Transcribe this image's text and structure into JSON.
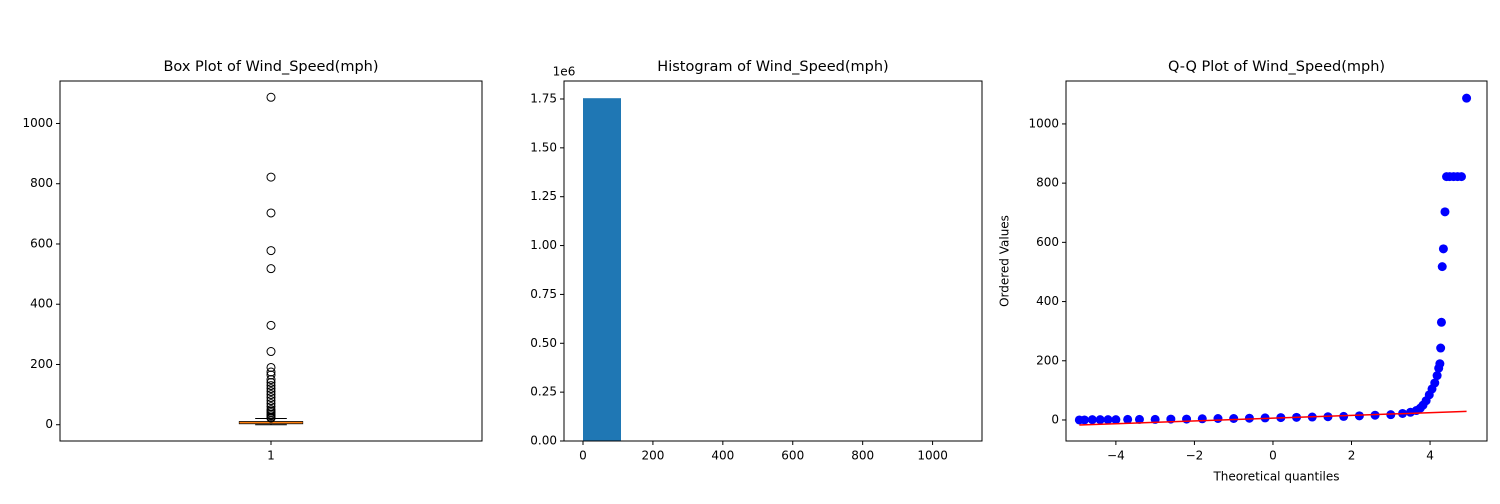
{
  "chart_data": [
    {
      "type": "box",
      "title": "Box Plot of Wind_Speed(mph)",
      "categories": [
        "1"
      ],
      "color": "black",
      "median_color": "#ff7f0e",
      "flier_color": "black",
      "boxes": [
        {
          "whislo": 0,
          "q1": 3.5,
          "median": 7,
          "q3": 10.4,
          "whishi": 20.7,
          "fliers": [
            1087,
            822,
            703,
            578,
            518,
            330,
            243,
            190,
            175,
            165,
            150,
            140,
            130,
            120,
            110,
            100,
            90,
            80,
            70,
            60,
            50,
            45,
            40,
            35,
            30,
            25,
            22
          ]
        }
      ],
      "ylim": [
        -54,
        1141
      ],
      "yticks": [
        0,
        200,
        400,
        600,
        800,
        1000
      ]
    },
    {
      "type": "histogram",
      "title": "Histogram of Wind_Speed(mph)",
      "color": "#1f77b4",
      "bins": [
        0,
        108.7,
        217.4,
        326.1,
        434.8,
        543.5,
        652.2,
        760.9,
        869.6,
        978.3,
        1087
      ],
      "counts": [
        1754000,
        300,
        12,
        2,
        1,
        2,
        1,
        4,
        0,
        1
      ],
      "xlim": [
        -54.35,
        1141.35
      ],
      "xticks": [
        0,
        200,
        400,
        600,
        800,
        1000
      ],
      "ylim": [
        0,
        1842000
      ],
      "y_offset_label": "1e6",
      "yticks": [
        {
          "value": 0,
          "label": "0.00"
        },
        {
          "value": 250000,
          "label": "0.25"
        },
        {
          "value": 500000,
          "label": "0.50"
        },
        {
          "value": 750000,
          "label": "0.75"
        },
        {
          "value": 1000000,
          "label": "1.00"
        },
        {
          "value": 1250000,
          "label": "1.25"
        },
        {
          "value": 1500000,
          "label": "1.50"
        },
        {
          "value": 1750000,
          "label": "1.75"
        }
      ]
    },
    {
      "type": "scatter",
      "title": "Q-Q Plot of Wind_Speed(mph)",
      "x_label": "Theoretical quantiles",
      "y_label": "Ordered Values",
      "color": "blue",
      "x": [
        -4.93,
        -4.8,
        -4.6,
        -4.4,
        -4.2,
        -4,
        -3.7,
        -3.4,
        -3,
        -2.6,
        -2.2,
        -1.8,
        -1.4,
        -1,
        -0.6,
        -0.2,
        0.2,
        0.6,
        1,
        1.4,
        1.8,
        2.2,
        2.6,
        3,
        3.3,
        3.5,
        3.65,
        3.75,
        3.82,
        3.9,
        3.98,
        4.05,
        4.12,
        4.18,
        4.22,
        4.25,
        4.27,
        4.29,
        4.31,
        4.34,
        4.38,
        4.42,
        4.5,
        4.6,
        4.7,
        4.8,
        4.93
      ],
      "y": [
        0,
        0,
        1,
        1,
        1,
        1,
        2,
        2,
        2,
        3,
        3,
        4,
        5,
        5,
        6,
        7,
        8,
        9,
        10,
        11,
        12,
        14,
        16,
        18,
        22,
        26,
        32,
        40,
        50,
        65,
        85,
        105,
        125,
        150,
        175,
        190,
        243,
        330,
        518,
        578,
        703,
        822,
        822,
        822,
        822,
        822,
        1087
      ],
      "fit": {
        "color": "red",
        "x": [
          -4.93,
          4.93
        ],
        "y": [
          -17,
          29
        ]
      },
      "xlim": [
        -5.27,
        5.45
      ],
      "xticks": [
        {
          "value": -4,
          "label": "−4"
        },
        {
          "value": -2,
          "label": "−2"
        },
        0,
        2,
        4
      ],
      "ylim": [
        -71,
        1145
      ],
      "yticks": [
        0,
        200,
        400,
        600,
        800,
        1000
      ]
    }
  ]
}
